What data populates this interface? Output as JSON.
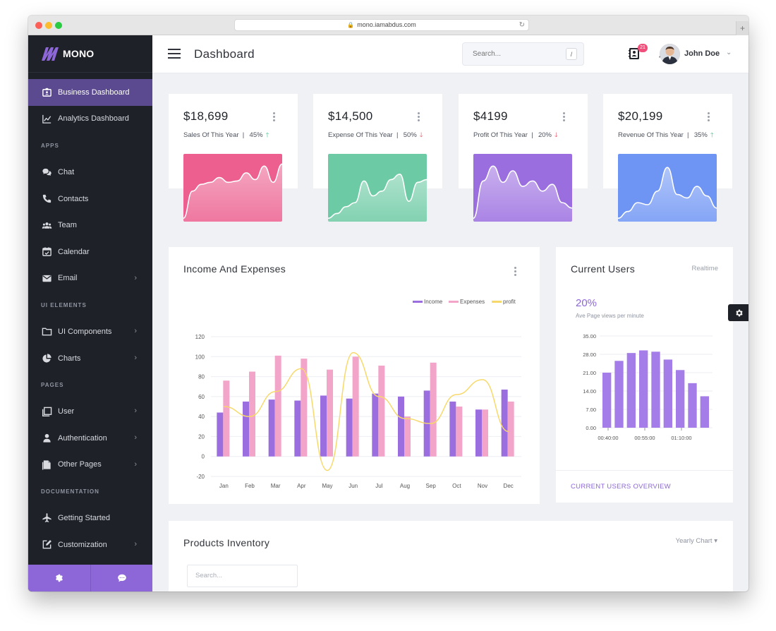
{
  "browser": {
    "url": "mono.iamabdus.com"
  },
  "brand": {
    "name": "MONO"
  },
  "sidebar": {
    "items": [
      {
        "label": "Business Dashboard",
        "icon": "badge-icon",
        "active": true
      },
      {
        "label": "Analytics Dashboard",
        "icon": "line-chart-icon"
      }
    ],
    "sections": [
      {
        "heading": "APPS",
        "items": [
          {
            "label": "Chat",
            "icon": "chat-icon"
          },
          {
            "label": "Contacts",
            "icon": "phone-icon"
          },
          {
            "label": "Team",
            "icon": "team-icon"
          },
          {
            "label": "Calendar",
            "icon": "calendar-icon"
          },
          {
            "label": "Email",
            "icon": "email-icon",
            "chevron": true
          }
        ]
      },
      {
        "heading": "UI ELEMENTS",
        "items": [
          {
            "label": "UI Components",
            "icon": "folder-icon",
            "chevron": true
          },
          {
            "label": "Charts",
            "icon": "pie-chart-icon",
            "chevron": true
          }
        ]
      },
      {
        "heading": "PAGES",
        "items": [
          {
            "label": "User",
            "icon": "user-pages-icon",
            "chevron": true
          },
          {
            "label": "Authentication",
            "icon": "person-icon",
            "chevron": true
          },
          {
            "label": "Other Pages",
            "icon": "pages-icon",
            "chevron": true
          }
        ]
      },
      {
        "heading": "DOCUMENTATION",
        "items": [
          {
            "label": "Getting Started",
            "icon": "airplane-icon"
          },
          {
            "label": "Customization",
            "icon": "edit-icon",
            "chevron": true
          }
        ]
      }
    ]
  },
  "header": {
    "title": "Dashboard",
    "search_placeholder": "Search...",
    "search_shortcut": "/",
    "notification_count": "21",
    "user_name": "John Doe"
  },
  "stats": [
    {
      "value": "$18,699",
      "label": "Sales Of This Year",
      "percent": "45%",
      "trend": "up",
      "color": "#ec5f8f"
    },
    {
      "value": "$14,500",
      "label": "Expense Of This Year",
      "percent": "50%",
      "trend": "down",
      "color": "#6ccaa4"
    },
    {
      "value": "$4199",
      "label": "Profit Of This Year",
      "percent": "20%",
      "trend": "down",
      "color": "#9b6ee0"
    },
    {
      "value": "$20,199",
      "label": "Revenue Of This Year",
      "percent": "35%",
      "trend": "up",
      "color": "#6f95f4"
    }
  ],
  "income_card": {
    "title": "Income And Expenses"
  },
  "users_card": {
    "title": "Current Users",
    "realtime": "Realtime",
    "percent": "20%",
    "subtitle": "Ave Page views per minute",
    "footer_link": "CURRENT USERS OVERVIEW"
  },
  "products_card": {
    "title": "Products Inventory",
    "dropdown": "Yearly Chart",
    "search_placeholder": "Search..."
  },
  "chart_data": [
    {
      "type": "bar",
      "categories": [
        "Jan",
        "Feb",
        "Mar",
        "Apr",
        "May",
        "Jun",
        "Jul",
        "Aug",
        "Sep",
        "Oct",
        "Nov",
        "Dec"
      ],
      "series": [
        {
          "name": "Income",
          "type": "bar",
          "color": "#9b6ee0",
          "values": [
            44,
            55,
            57,
            56,
            61,
            58,
            63,
            60,
            66,
            55,
            47,
            67
          ]
        },
        {
          "name": "Expenses",
          "type": "bar",
          "color": "#f2a5c8",
          "values": [
            76,
            85,
            101,
            98,
            87,
            100,
            91,
            40,
            94,
            50,
            47,
            55
          ]
        },
        {
          "name": "profit",
          "type": "line",
          "color": "#f7d96b",
          "values": [
            50,
            40,
            65,
            88,
            -14,
            104,
            60,
            38,
            33,
            62,
            77,
            25
          ]
        }
      ],
      "yticks": [
        -20,
        0,
        20,
        40,
        60,
        80,
        100,
        120
      ],
      "ylim": [
        -20,
        120
      ],
      "legend": "top-right",
      "grid": true
    },
    {
      "type": "bar",
      "series": [
        {
          "color": "#a57de8",
          "values": [
            21,
            25.5,
            28.5,
            29.5,
            29,
            26,
            22,
            17,
            12
          ]
        }
      ],
      "xticks": [
        "00:40:00",
        "00:55:00",
        "01:10:00"
      ],
      "yticks": [
        "0.00",
        "7.00",
        "14.00",
        "21.00",
        "28.00",
        "35.00"
      ],
      "ylim": [
        0,
        35
      ],
      "grid": true
    }
  ]
}
